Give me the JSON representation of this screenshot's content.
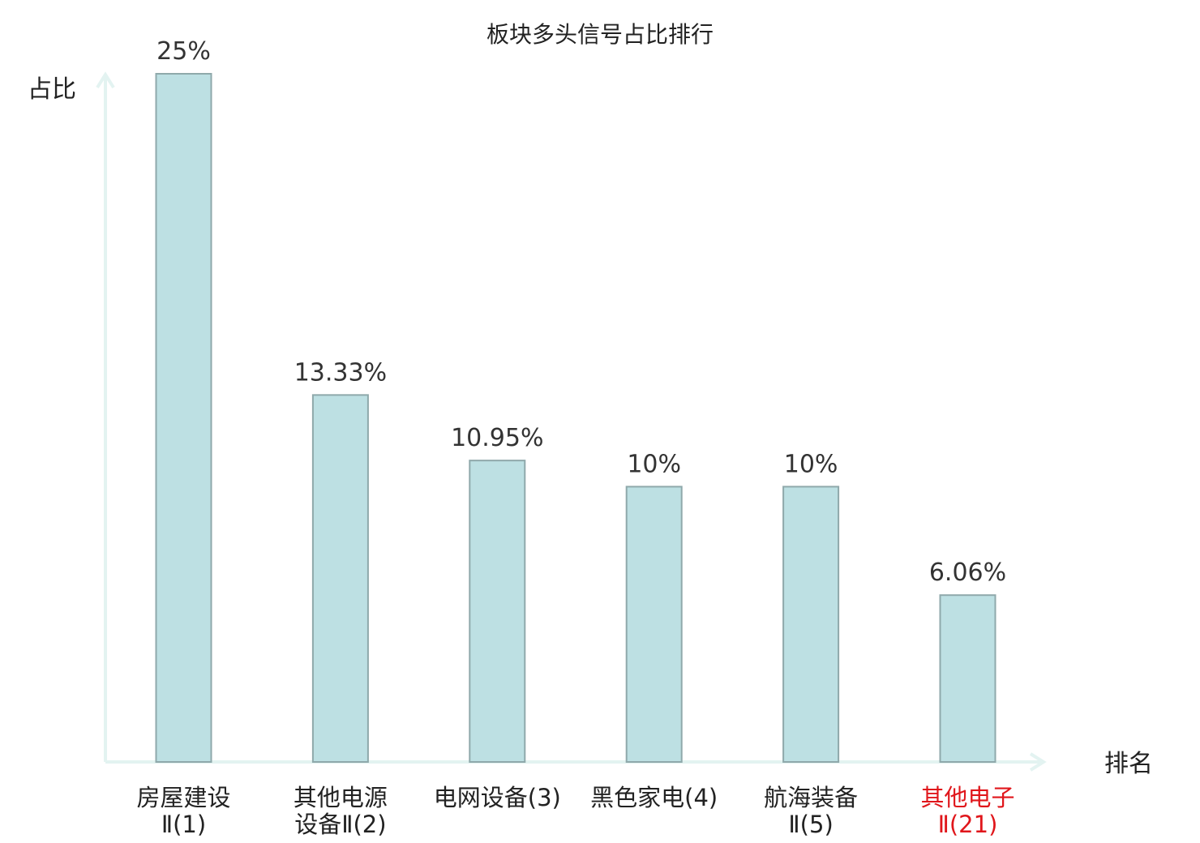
{
  "chart_data": {
    "type": "bar",
    "title": "板块多头信号占比排行",
    "ylabel": "占比",
    "xlabel": "排名",
    "ylim": [
      0,
      25
    ],
    "grid": false,
    "categories": [
      {
        "lines": [
          "房屋建设",
          "Ⅱ(1)"
        ],
        "highlight": false
      },
      {
        "lines": [
          "其他电源",
          "设备Ⅱ(2)"
        ],
        "highlight": false
      },
      {
        "lines": [
          "电网设备(3)"
        ],
        "highlight": false
      },
      {
        "lines": [
          "黑色家电(4)"
        ],
        "highlight": false
      },
      {
        "lines": [
          "航海装备",
          "Ⅱ(5)"
        ],
        "highlight": false
      },
      {
        "lines": [
          "其他电子",
          "Ⅱ(21)"
        ],
        "highlight": true
      }
    ],
    "values": [
      25,
      13.33,
      10.95,
      10,
      10,
      6.06
    ],
    "value_labels": [
      "25%",
      "13.33%",
      "10.95%",
      "10%",
      "10%",
      "6.06%"
    ]
  },
  "colors": {
    "bar_fill": "#bde0e3",
    "bar_stroke": "#8fa9ab",
    "axis": "#e3f3f1",
    "highlight_text": "#e0161b",
    "normal_text": "#222222"
  }
}
